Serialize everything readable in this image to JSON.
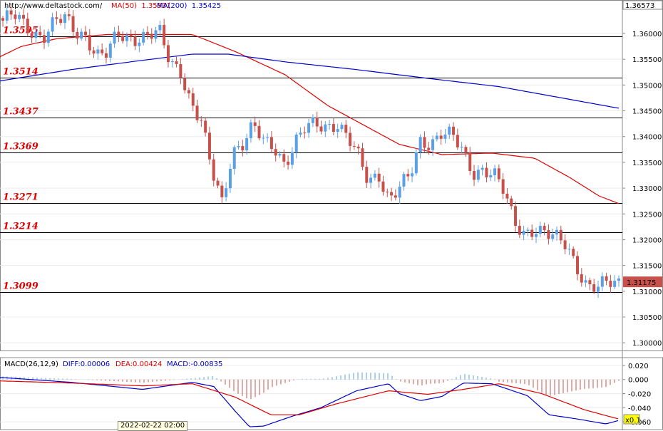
{
  "header": {
    "source": "http://www.deltastock.com/",
    "ma50_label": "MA(50)",
    "ma50_value": "1.35931",
    "ma200_label": "MA(200)",
    "ma200_value": "1.35425"
  },
  "price_panel": {
    "top_price": "1.36573",
    "current_price": "1.31175",
    "ticks": [
      "1.36000",
      "1.35500",
      "1.35000",
      "1.34500",
      "1.34000",
      "1.33500",
      "1.33000",
      "1.32500",
      "1.32000",
      "1.31500",
      "1.31000",
      "1.30500",
      "1.30000"
    ],
    "levels": [
      "1.3595",
      "1.3514",
      "1.3437",
      "1.3369",
      "1.3271",
      "1.3214",
      "1.3099"
    ]
  },
  "macd_panel": {
    "title": "MACD(26,12,9)",
    "diff": "DIFF:0.00006",
    "dea": "DEA:0.00424",
    "macd": "MACD:-0.00835",
    "ticks": [
      "0.020",
      "0.000",
      "-0.020",
      "-0.040",
      "-0.060"
    ],
    "zoom": "x0.1"
  },
  "time_label": "2022-02-22 02:00",
  "colors": {
    "up": "#5aa0e6",
    "down": "#c8504b",
    "ma50": "#e00000",
    "ma200": "#0000cc",
    "level": "#e00000"
  },
  "chart_data": {
    "type": "candlestick",
    "price_ylim": [
      1.2985,
      1.3665
    ],
    "macd_ylim": [
      -0.072,
      0.028
    ],
    "levels": [
      1.3595,
      1.3514,
      1.3437,
      1.3369,
      1.3271,
      1.3214,
      1.3099
    ],
    "close_keypoints": [
      1.3625,
      1.3635,
      1.3615,
      1.36,
      1.36,
      1.3625,
      1.3625,
      1.36,
      1.3598,
      1.356,
      1.356,
      1.3595,
      1.359,
      1.3595,
      1.36,
      1.36,
      1.354,
      1.353,
      1.347,
      1.343,
      1.333,
      1.327,
      1.3375,
      1.339,
      1.342,
      1.3385,
      1.338,
      1.335,
      1.339,
      1.3415,
      1.342,
      1.342,
      1.343,
      1.34,
      1.336,
      1.331,
      1.333,
      1.328,
      1.33,
      1.332,
      1.339,
      1.339,
      1.341,
      1.34,
      1.337,
      1.333,
      1.334,
      1.333,
      1.329,
      1.323,
      1.3215,
      1.3225,
      1.321,
      1.32,
      1.319,
      1.315,
      1.311,
      1.3105,
      1.3115,
      1.3117
    ],
    "ma50_keypoints": [
      [
        0,
        1.3555
      ],
      [
        30,
        1.3575
      ],
      [
        80,
        1.359
      ],
      [
        150,
        1.3598
      ],
      [
        270,
        1.3598
      ],
      [
        330,
        1.3565
      ],
      [
        400,
        1.352
      ],
      [
        460,
        1.346
      ],
      [
        520,
        1.3415
      ],
      [
        560,
        1.3385
      ],
      [
        620,
        1.3365
      ],
      [
        690,
        1.3368
      ],
      [
        750,
        1.3358
      ],
      [
        800,
        1.332
      ],
      [
        840,
        1.3285
      ],
      [
        868,
        1.327
      ]
    ],
    "ma200_keypoints": [
      [
        0,
        1.3508
      ],
      [
        100,
        1.353
      ],
      [
        200,
        1.3548
      ],
      [
        270,
        1.356
      ],
      [
        320,
        1.356
      ],
      [
        400,
        1.3545
      ],
      [
        500,
        1.353
      ],
      [
        600,
        1.3513
      ],
      [
        700,
        1.3497
      ],
      [
        780,
        1.3477
      ],
      [
        868,
        1.3455
      ]
    ],
    "diff_keypoints": [
      [
        0,
        0.003
      ],
      [
        100,
        -0.004
      ],
      [
        200,
        -0.014
      ],
      [
        270,
        -0.004
      ],
      [
        300,
        -0.01
      ],
      [
        330,
        -0.045
      ],
      [
        350,
        -0.067
      ],
      [
        370,
        -0.066
      ],
      [
        410,
        -0.052
      ],
      [
        450,
        -0.04
      ],
      [
        500,
        -0.016
      ],
      [
        545,
        -0.006
      ],
      [
        560,
        -0.02
      ],
      [
        590,
        -0.03
      ],
      [
        620,
        -0.024
      ],
      [
        650,
        -0.005
      ],
      [
        690,
        -0.006
      ],
      [
        740,
        -0.023
      ],
      [
        770,
        -0.05
      ],
      [
        810,
        -0.056
      ],
      [
        850,
        -0.063
      ],
      [
        868,
        -0.058
      ]
    ],
    "dea_keypoints": [
      [
        0,
        -0.002
      ],
      [
        100,
        -0.005
      ],
      [
        200,
        -0.009
      ],
      [
        270,
        -0.006
      ],
      [
        330,
        -0.025
      ],
      [
        380,
        -0.05
      ],
      [
        420,
        -0.05
      ],
      [
        470,
        -0.035
      ],
      [
        545,
        -0.016
      ],
      [
        600,
        -0.021
      ],
      [
        650,
        -0.014
      ],
      [
        700,
        -0.006
      ],
      [
        760,
        -0.02
      ],
      [
        820,
        -0.043
      ],
      [
        868,
        -0.056
      ]
    ]
  }
}
